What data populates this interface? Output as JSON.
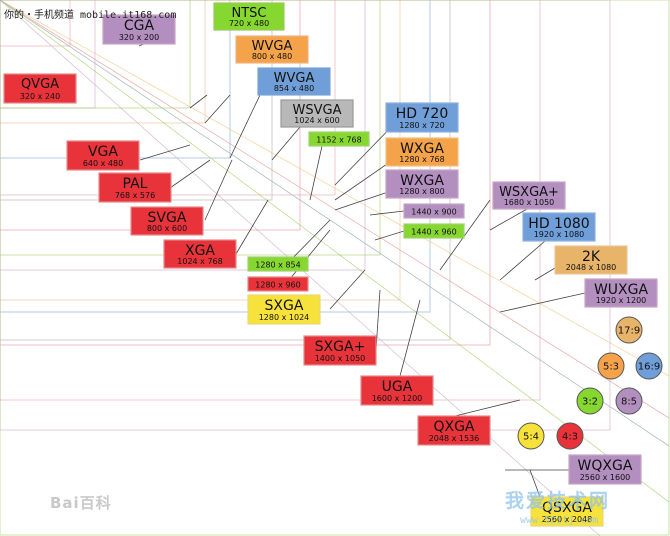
{
  "watermarks": {
    "top_left": "你的・手机频道 mobile.it168.com",
    "baidu": "Bai百科",
    "site": "我爱技术网",
    "site_url": "www.52itj.com"
  },
  "resolutions": [
    {
      "key": "cga",
      "name": "CGA",
      "dims": "320 x 200",
      "color": "#b28fbf"
    },
    {
      "key": "ntsc",
      "name": "NTSC",
      "dims": "720 x 480",
      "color": "#86d72f"
    },
    {
      "key": "wvga-800",
      "name": "WVGA",
      "dims": "800 x 480",
      "color": "#f5a34a"
    },
    {
      "key": "wvga-854",
      "name": "WVGA",
      "dims": "854 x 480",
      "color": "#6f9ed8"
    },
    {
      "key": "wsvga",
      "name": "WSVGA",
      "dims": "1024 x 600",
      "color": "#b8b8b8"
    },
    {
      "key": "qvga",
      "name": "QVGA",
      "dims": "320 x 240",
      "color": "#e8333b"
    },
    {
      "key": "hd720",
      "name": "HD 720",
      "dims": "1280 x 720",
      "color": "#6f9ed8"
    },
    {
      "key": "r1152",
      "name": "",
      "dims": "1152 x 768",
      "color": "#86d72f"
    },
    {
      "key": "wxga-768",
      "name": "WXGA",
      "dims": "1280 x 768",
      "color": "#f5a34a"
    },
    {
      "key": "vga",
      "name": "VGA",
      "dims": "640 x 480",
      "color": "#e8333b"
    },
    {
      "key": "wxga-800",
      "name": "WXGA",
      "dims": "1280 x 800",
      "color": "#b28fbf"
    },
    {
      "key": "pal",
      "name": "PAL",
      "dims": "768 x 576",
      "color": "#e8333b"
    },
    {
      "key": "wsxgaplus",
      "name": "WSXGA+",
      "dims": "1680 x 1050",
      "color": "#b28fbf"
    },
    {
      "key": "r1440-900",
      "name": "",
      "dims": "1440 x 900",
      "color": "#b28fbf"
    },
    {
      "key": "svga",
      "name": "SVGA",
      "dims": "800 x 600",
      "color": "#e8333b"
    },
    {
      "key": "r1440-960",
      "name": "",
      "dims": "1440 x 960",
      "color": "#86d72f"
    },
    {
      "key": "hd1080",
      "name": "HD 1080",
      "dims": "1920 x 1080",
      "color": "#6f9ed8"
    },
    {
      "key": "xga",
      "name": "XGA",
      "dims": "1024 x 768",
      "color": "#e8333b"
    },
    {
      "key": "r1280-854",
      "name": "",
      "dims": "1280 x 854",
      "color": "#86d72f"
    },
    {
      "key": "2k",
      "name": "2K",
      "dims": "2048 x 1080",
      "color": "#e8b46a"
    },
    {
      "key": "r1280-960",
      "name": "",
      "dims": "1280 x 960",
      "color": "#e8333b"
    },
    {
      "key": "wuxga",
      "name": "WUXGA",
      "dims": "1920 x 1200",
      "color": "#b28fbf"
    },
    {
      "key": "sxga",
      "name": "SXGA",
      "dims": "1280 x 1024",
      "color": "#f7e23b"
    },
    {
      "key": "sxgaplus",
      "name": "SXGA+",
      "dims": "1400 x 1050",
      "color": "#e8333b"
    },
    {
      "key": "uga",
      "name": "UGA",
      "dims": "1600 x 1200",
      "color": "#e8333b"
    },
    {
      "key": "qxga",
      "name": "QXGA",
      "dims": "2048 x 1536",
      "color": "#e8333b"
    },
    {
      "key": "wqxga",
      "name": "WQXGA",
      "dims": "2560 x 1600",
      "color": "#b28fbf"
    },
    {
      "key": "qsxga",
      "name": "QSXGA",
      "dims": "2560 x 2048",
      "color": "#f7e23b"
    }
  ],
  "aspect_ratios": [
    {
      "key": "17-9",
      "label": "17:9",
      "color": "#e8b46a"
    },
    {
      "key": "5-3",
      "label": "5:3",
      "color": "#f5a34a"
    },
    {
      "key": "16-9",
      "label": "16:9",
      "color": "#6f9ed8"
    },
    {
      "key": "3-2",
      "label": "3:2",
      "color": "#86d72f"
    },
    {
      "key": "8-5",
      "label": "8:5",
      "color": "#b28fbf"
    },
    {
      "key": "5-4",
      "label": "5:4",
      "color": "#f7e23b"
    },
    {
      "key": "4-3",
      "label": "4:3",
      "color": "#e8333b"
    }
  ],
  "colors": {
    "line_border": "#444444"
  }
}
